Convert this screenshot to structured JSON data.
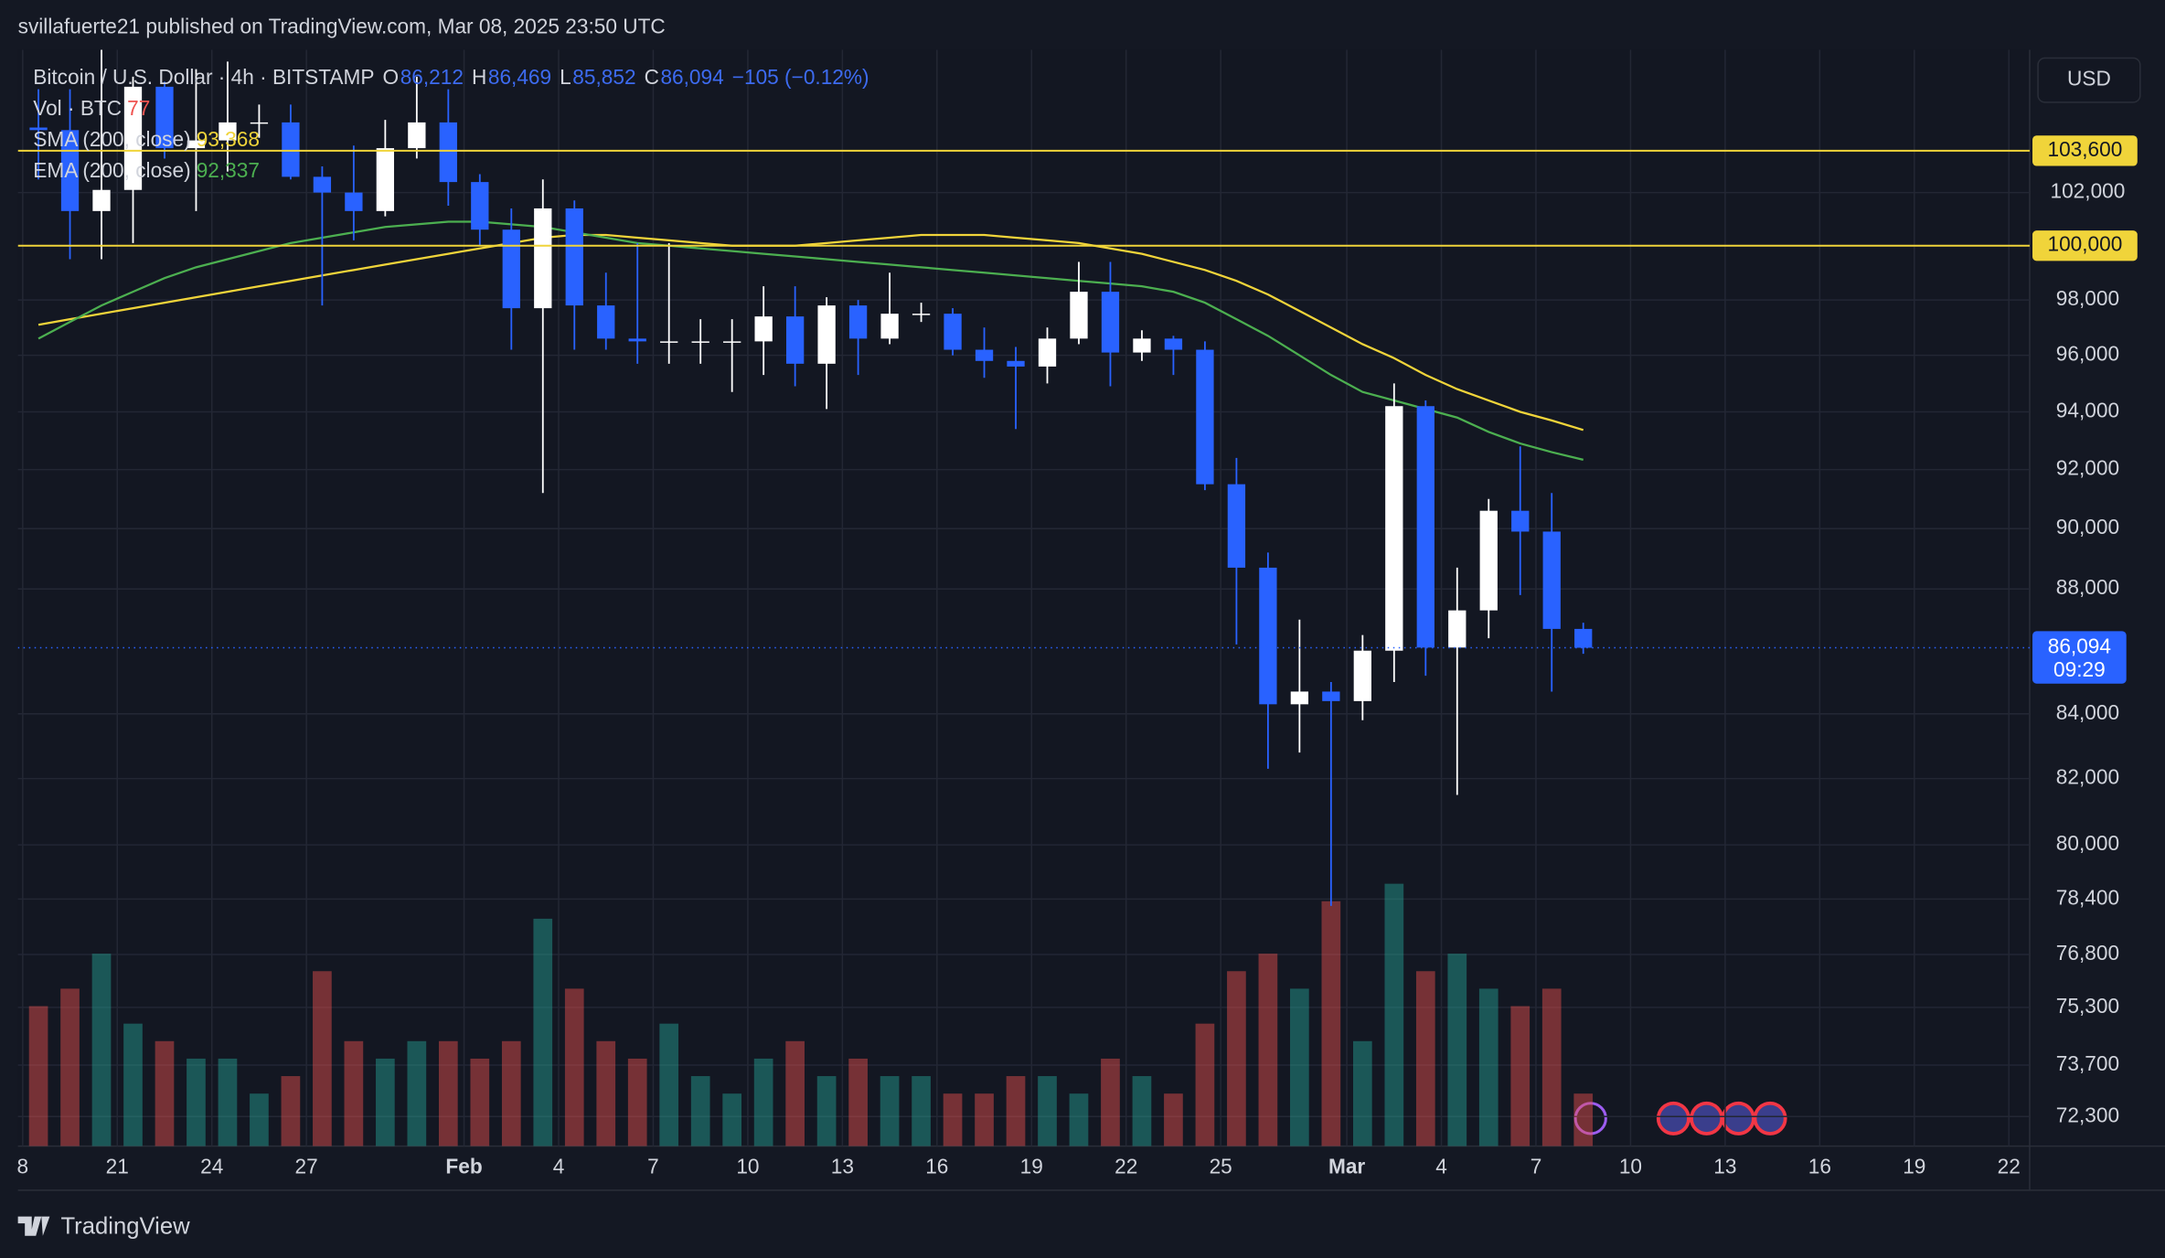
{
  "header": {
    "byline": "svillafuerte21 published on TradingView.com, Mar 08, 2025 23:50 UTC"
  },
  "footer": {
    "brand": "TradingView"
  },
  "price_axis": {
    "currency": "USD"
  },
  "chart_data": {
    "type": "candlestick",
    "title": "Bitcoin / U.S. Dollar · 4h · BITSTAMP",
    "ohlc": [
      {
        "key": "O",
        "value": 86212,
        "label": "86,212"
      },
      {
        "key": "H",
        "value": 86469,
        "label": "86,469"
      },
      {
        "key": "L",
        "value": 85852,
        "label": "85,852"
      },
      {
        "key": "C",
        "value": 86094,
        "label": "86,094"
      }
    ],
    "change": {
      "value": -105,
      "label": "−105 (−0.12%)"
    },
    "up_color": "#ffffff",
    "down_color": "#2962ff",
    "volume_up_color": "#26a69a",
    "volume_down_color": "#ef5350",
    "x": [
      18,
      19,
      20,
      21,
      22,
      23,
      24,
      25,
      26,
      27,
      28,
      29,
      30,
      31,
      32,
      33,
      34,
      35,
      36,
      37,
      38,
      39,
      40,
      41,
      42,
      43,
      44,
      45,
      46,
      47,
      48,
      49,
      50,
      51,
      52,
      53,
      54,
      55,
      56,
      57,
      58,
      59,
      60,
      61,
      62,
      63,
      64,
      65,
      66,
      67
    ],
    "open": [
      104500,
      104400,
      101300,
      102100,
      106100,
      103700,
      104000,
      104700,
      104700,
      102600,
      102000,
      101300,
      103700,
      104700,
      102400,
      100600,
      97700,
      101400,
      97800,
      96600,
      96500,
      96500,
      96500,
      96500,
      97400,
      95700,
      97800,
      96600,
      97500,
      97500,
      96200,
      95800,
      95600,
      96600,
      98300,
      96100,
      96600,
      96200,
      91500,
      88700,
      84300,
      84700,
      84400,
      86000,
      94200,
      86100,
      87300,
      90600,
      89900,
      86700
    ],
    "high": [
      106000,
      106000,
      109000,
      106500,
      106300,
      106800,
      107100,
      105400,
      105400,
      103000,
      103800,
      104800,
      106500,
      106000,
      102700,
      101400,
      102500,
      101700,
      99000,
      100100,
      100100,
      97300,
      97300,
      98500,
      98500,
      98100,
      98000,
      99000,
      97900,
      97700,
      97000,
      96300,
      97000,
      99400,
      99400,
      96900,
      96700,
      96500,
      92400,
      89200,
      87000,
      85000,
      86500,
      95000,
      94400,
      88700,
      91000,
      92800,
      91200,
      86900
    ],
    "low": [
      102500,
      99500,
      99500,
      100100,
      103300,
      101300,
      102800,
      104100,
      102500,
      97800,
      100200,
      101100,
      103300,
      101500,
      100000,
      96200,
      91200,
      96200,
      96200,
      95700,
      95700,
      95700,
      94700,
      95300,
      94900,
      94100,
      95300,
      96400,
      97200,
      96000,
      95200,
      93400,
      95000,
      96400,
      94900,
      95800,
      95300,
      91300,
      86200,
      82300,
      82800,
      78200,
      83800,
      85000,
      85200,
      81500,
      86400,
      87800,
      84700,
      85900
    ],
    "close": [
      104400,
      101300,
      102100,
      106100,
      103700,
      104000,
      104700,
      104700,
      102600,
      102000,
      101300,
      103700,
      104700,
      102400,
      100600,
      97700,
      101400,
      97800,
      96600,
      96500,
      96500,
      96500,
      96500,
      97400,
      95700,
      97800,
      96600,
      97500,
      97500,
      96200,
      95800,
      95600,
      96600,
      98300,
      96100,
      96600,
      96200,
      91500,
      88700,
      84300,
      84700,
      84400,
      86000,
      94200,
      86100,
      87300,
      90600,
      89900,
      86700,
      86094
    ],
    "volume": {
      "name": "Vol · BTC",
      "legend_value": 77,
      "values": [
        800,
        900,
        1100,
        700,
        600,
        500,
        500,
        300,
        400,
        1000,
        600,
        500,
        600,
        600,
        500,
        600,
        1300,
        900,
        600,
        500,
        700,
        400,
        300,
        500,
        600,
        400,
        500,
        400,
        400,
        300,
        300,
        400,
        400,
        300,
        500,
        400,
        300,
        700,
        1000,
        1100,
        900,
        1400,
        600,
        1500,
        1000,
        1100,
        900,
        800,
        900,
        300
      ]
    },
    "series": [
      {
        "name": "SMA (200, close)",
        "color": "#f0d43a",
        "legend_value": {
          "value": 93368,
          "label": "93,368"
        },
        "values": [
          97100,
          97300,
          97500,
          97700,
          97900,
          98100,
          98300,
          98500,
          98700,
          98900,
          99100,
          99300,
          99500,
          99700,
          99900,
          100100,
          100300,
          100400,
          100400,
          100300,
          100200,
          100100,
          100000,
          100000,
          100000,
          100100,
          100200,
          100300,
          100400,
          100400,
          100400,
          100300,
          100200,
          100100,
          99900,
          99700,
          99400,
          99100,
          98700,
          98200,
          97600,
          97000,
          96400,
          95900,
          95300,
          94800,
          94400,
          94000,
          93700,
          93368
        ]
      },
      {
        "name": "EMA (200, close)",
        "color": "#4caf50",
        "legend_value": {
          "value": 92337,
          "label": "92,337"
        },
        "values": [
          96600,
          97200,
          97800,
          98300,
          98800,
          99200,
          99500,
          99800,
          100100,
          100300,
          100500,
          100700,
          100800,
          100900,
          100900,
          100800,
          100700,
          100500,
          100300,
          100100,
          100000,
          99900,
          99800,
          99700,
          99600,
          99500,
          99400,
          99300,
          99200,
          99100,
          99000,
          98900,
          98800,
          98700,
          98600,
          98500,
          98300,
          97900,
          97300,
          96700,
          96000,
          95300,
          94700,
          94400,
          94100,
          93800,
          93300,
          92900,
          92600,
          92337
        ]
      }
    ],
    "xlim": [
      17.85,
      81.66
    ],
    "ylim": [
      71510,
      107570
    ],
    "log_scale": true,
    "grid": true,
    "xticks": [
      {
        "value": 18,
        "label": "8"
      },
      21,
      24,
      27,
      {
        "value": 32,
        "label": "Feb"
      },
      {
        "value": 35,
        "label": "4"
      },
      {
        "value": 38,
        "label": "7"
      },
      {
        "value": 41,
        "label": "10"
      },
      {
        "value": 44,
        "label": "13"
      },
      {
        "value": 47,
        "label": "16"
      },
      {
        "value": 50,
        "label": "19"
      },
      {
        "value": 53,
        "label": "22"
      },
      {
        "value": 56,
        "label": "25"
      },
      {
        "value": 60,
        "label": "Mar"
      },
      {
        "value": 63,
        "label": "4"
      },
      {
        "value": 66,
        "label": "7"
      },
      {
        "value": 69,
        "label": "10"
      },
      {
        "value": 72,
        "label": "13"
      },
      {
        "value": 75,
        "label": "16"
      },
      {
        "value": 78,
        "label": "19"
      },
      {
        "value": 81,
        "label": "22"
      }
    ],
    "yticks": [
      {
        "value": 102000,
        "label": "102,000"
      },
      {
        "value": 98000,
        "label": "98,000"
      },
      {
        "value": 96000,
        "label": "96,000"
      },
      {
        "value": 94000,
        "label": "94,000"
      },
      {
        "value": 92000,
        "label": "92,000"
      },
      {
        "value": 90000,
        "label": "90,000"
      },
      {
        "value": 88000,
        "label": "88,000"
      },
      {
        "value": 84000,
        "label": "84,000"
      },
      {
        "value": 82000,
        "label": "82,000"
      },
      {
        "value": 80000,
        "label": "80,000"
      },
      {
        "value": 78400,
        "label": "78,400"
      },
      {
        "value": 76800,
        "label": "76,800"
      },
      {
        "value": 75300,
        "label": "75,300"
      },
      {
        "value": 73700,
        "label": "73,700"
      },
      {
        "value": 72300,
        "label": "72,300"
      }
    ],
    "price_lines": [
      {
        "value": 103600,
        "label": "103,600",
        "color": "#f0d43a"
      },
      {
        "value": 100000,
        "label": "100,000",
        "color": "#f0d43a"
      }
    ],
    "last_price": {
      "value": 86094,
      "label": "86,094",
      "countdown": "09:29",
      "color": "#2962ff"
    }
  }
}
